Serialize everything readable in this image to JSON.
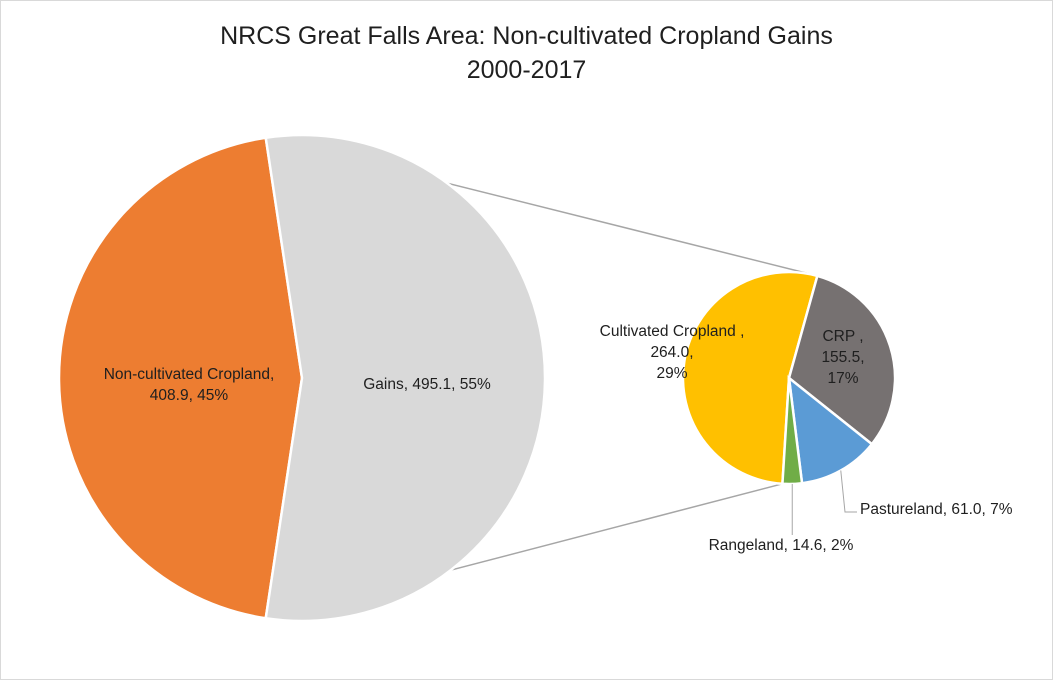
{
  "chart_data": {
    "type": "pie",
    "subtype": "pie-of-pie",
    "title_line1": "NRCS Great Falls Area: Non-cultivated Cropland Gains",
    "title_line2": "2000-2017",
    "main_pie": [
      {
        "name": "Non-cultivated Cropland,",
        "value": 408.9,
        "percent": "45%",
        "color": "#ED7D31",
        "label": [
          "Non-cultivated Cropland,",
          "408.9, 45%"
        ]
      },
      {
        "name": "Gains",
        "value": 495.1,
        "percent": "55%",
        "color": "#D9D9D9",
        "label": [
          "Gains, 495.1, 55%"
        ]
      }
    ],
    "secondary_pie": [
      {
        "name": "Cultivated Cropland",
        "value": 264.0,
        "percent": "29%",
        "color": "#FFC000",
        "label": [
          "Cultivated Cropland ,",
          "264.0,",
          "29%"
        ]
      },
      {
        "name": "CRP",
        "value": 155.5,
        "percent": "17%",
        "color": "#767171",
        "label": [
          "CRP ,",
          "155.5,",
          "17%"
        ]
      },
      {
        "name": "Pastureland",
        "value": 61.0,
        "percent": "7%",
        "color": "#5B9BD5",
        "label": [
          "Pastureland, 61.0, 7%"
        ]
      },
      {
        "name": "Rangeland",
        "value": 14.6,
        "percent": "2%",
        "color": "#70AD47",
        "label": [
          "Rangeland, 14.6, 2%"
        ]
      }
    ],
    "legend": "none"
  }
}
